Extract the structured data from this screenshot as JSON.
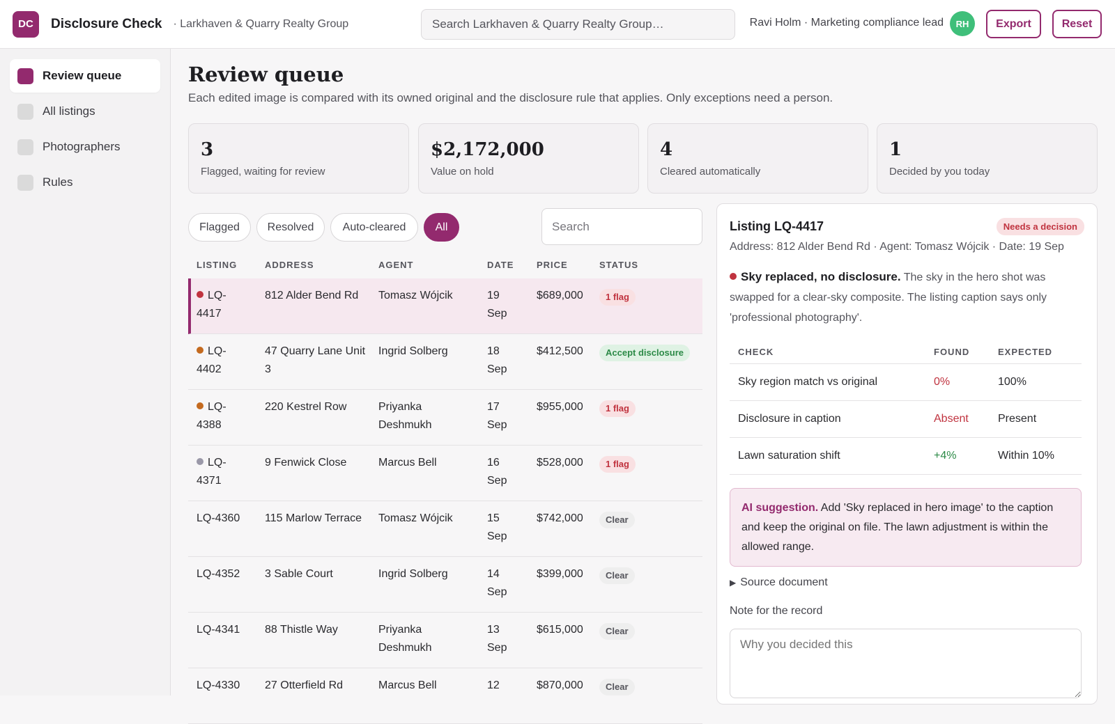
{
  "header": {
    "logo": "DC",
    "title": "Disclosure Check",
    "org": "· Larkhaven & Quarry Realty Group",
    "search_placeholder": "Search Larkhaven & Quarry Realty Group…",
    "user": "Ravi Holm · Marketing compliance lead",
    "avatar": "RH",
    "export": "Export",
    "reset": "Reset"
  },
  "sidebar": {
    "items": [
      {
        "label": "Review queue",
        "active": true
      },
      {
        "label": "All listings",
        "active": false
      },
      {
        "label": "Photographers",
        "active": false
      },
      {
        "label": "Rules",
        "active": false
      }
    ]
  },
  "page": {
    "title": "Review queue",
    "subtitle": "Each edited image is compared with its owned original and the disclosure rule that applies. Only exceptions need a person."
  },
  "stats": [
    {
      "value": "3",
      "label": "Flagged, waiting for review"
    },
    {
      "value": "$2,172,000",
      "label": "Value on hold"
    },
    {
      "value": "4",
      "label": "Cleared automatically"
    },
    {
      "value": "1",
      "label": "Decided by you today"
    }
  ],
  "filters": {
    "chips": [
      "Flagged",
      "Resolved",
      "Auto-cleared",
      "All"
    ],
    "active": "All",
    "search_placeholder": "Search"
  },
  "table": {
    "columns": [
      "LISTING",
      "ADDRESS",
      "AGENT",
      "DATE",
      "PRICE",
      "STATUS"
    ],
    "rows": [
      {
        "id_a": "LQ-",
        "id_b": "4417",
        "dot": "#c0333f",
        "address": "812 Alder Bend Rd",
        "agent": "Tomasz Wójcik",
        "date_a": "19",
        "date_b": "Sep",
        "price": "$689,000",
        "status": "1 flag",
        "status_type": "flag",
        "selected": true
      },
      {
        "id_a": "LQ-",
        "id_b": "4402",
        "dot": "#c46a1f",
        "address": "47 Quarry Lane Unit 3",
        "agent": "Ingrid Solberg",
        "date_a": "18",
        "date_b": "Sep",
        "price": "$412,500",
        "status": "Accept disclosure",
        "status_type": "accept"
      },
      {
        "id_a": "LQ-",
        "id_b": "4388",
        "dot": "#c46a1f",
        "address": "220 Kestrel Row",
        "agent": "Priyanka Deshmukh",
        "date_a": "17",
        "date_b": "Sep",
        "price": "$955,000",
        "status": "1 flag",
        "status_type": "flag"
      },
      {
        "id_a": "LQ-",
        "id_b": "4371",
        "dot": "#9a98a8",
        "address": "9 Fenwick Close",
        "agent": "Marcus Bell",
        "date_a": "16",
        "date_b": "Sep",
        "price": "$528,000",
        "status": "1 flag",
        "status_type": "flag"
      },
      {
        "id_a": "LQ-4360",
        "id_b": "",
        "dot": "",
        "address": "115 Marlow Terrace",
        "agent": "Tomasz Wójcik",
        "date_a": "15",
        "date_b": "Sep",
        "price": "$742,000",
        "status": "Clear",
        "status_type": "clear"
      },
      {
        "id_a": "LQ-4352",
        "id_b": "",
        "dot": "",
        "address": "3 Sable Court",
        "agent": "Ingrid Solberg",
        "date_a": "14",
        "date_b": "Sep",
        "price": "$399,000",
        "status": "Clear",
        "status_type": "clear"
      },
      {
        "id_a": "LQ-4341",
        "id_b": "",
        "dot": "",
        "address": "88 Thistle Way",
        "agent": "Priyanka Deshmukh",
        "date_a": "13",
        "date_b": "Sep",
        "price": "$615,000",
        "status": "Clear",
        "status_type": "clear"
      },
      {
        "id_a": "LQ-4330",
        "id_b": "",
        "dot": "",
        "address": "27 Otterfield Rd",
        "agent": "Marcus Bell",
        "date_a": "12",
        "date_b": "",
        "price": "$870,000",
        "status": "Clear",
        "status_type": "clear"
      }
    ]
  },
  "detail": {
    "title": "Listing LQ-4417",
    "badge": "Needs a decision",
    "meta": "Address: 812 Alder Bend Rd · Agent: Tomasz Wójcik · Date: 19 Sep",
    "issue_title": "Sky replaced, no disclosure.",
    "issue_text": "The sky in the hero shot was swapped for a clear-sky composite. The listing caption says only 'professional photography'.",
    "check_columns": [
      "CHECK",
      "FOUND",
      "EXPECTED"
    ],
    "checks": [
      {
        "check": "Sky region match vs original",
        "found": "0%",
        "expected": "100%",
        "state": "bad"
      },
      {
        "check": "Disclosure in caption",
        "found": "Absent",
        "expected": "Present",
        "state": "bad"
      },
      {
        "check": "Lawn saturation shift",
        "found": "+4%",
        "expected": "Within 10%",
        "state": "good"
      }
    ],
    "ai_label": "AI suggestion.",
    "ai_text": "Add 'Sky replaced in hero image' to the caption and keep the original on file. The lawn adjustment is within the allowed range.",
    "source": "Source document",
    "note_label": "Note for the record",
    "note_placeholder": "Why you decided this"
  },
  "colors": {
    "accent": "#932a6e",
    "flag": "#c0333f",
    "ok": "#2c8a47",
    "avatar": "#3fbf7a"
  }
}
